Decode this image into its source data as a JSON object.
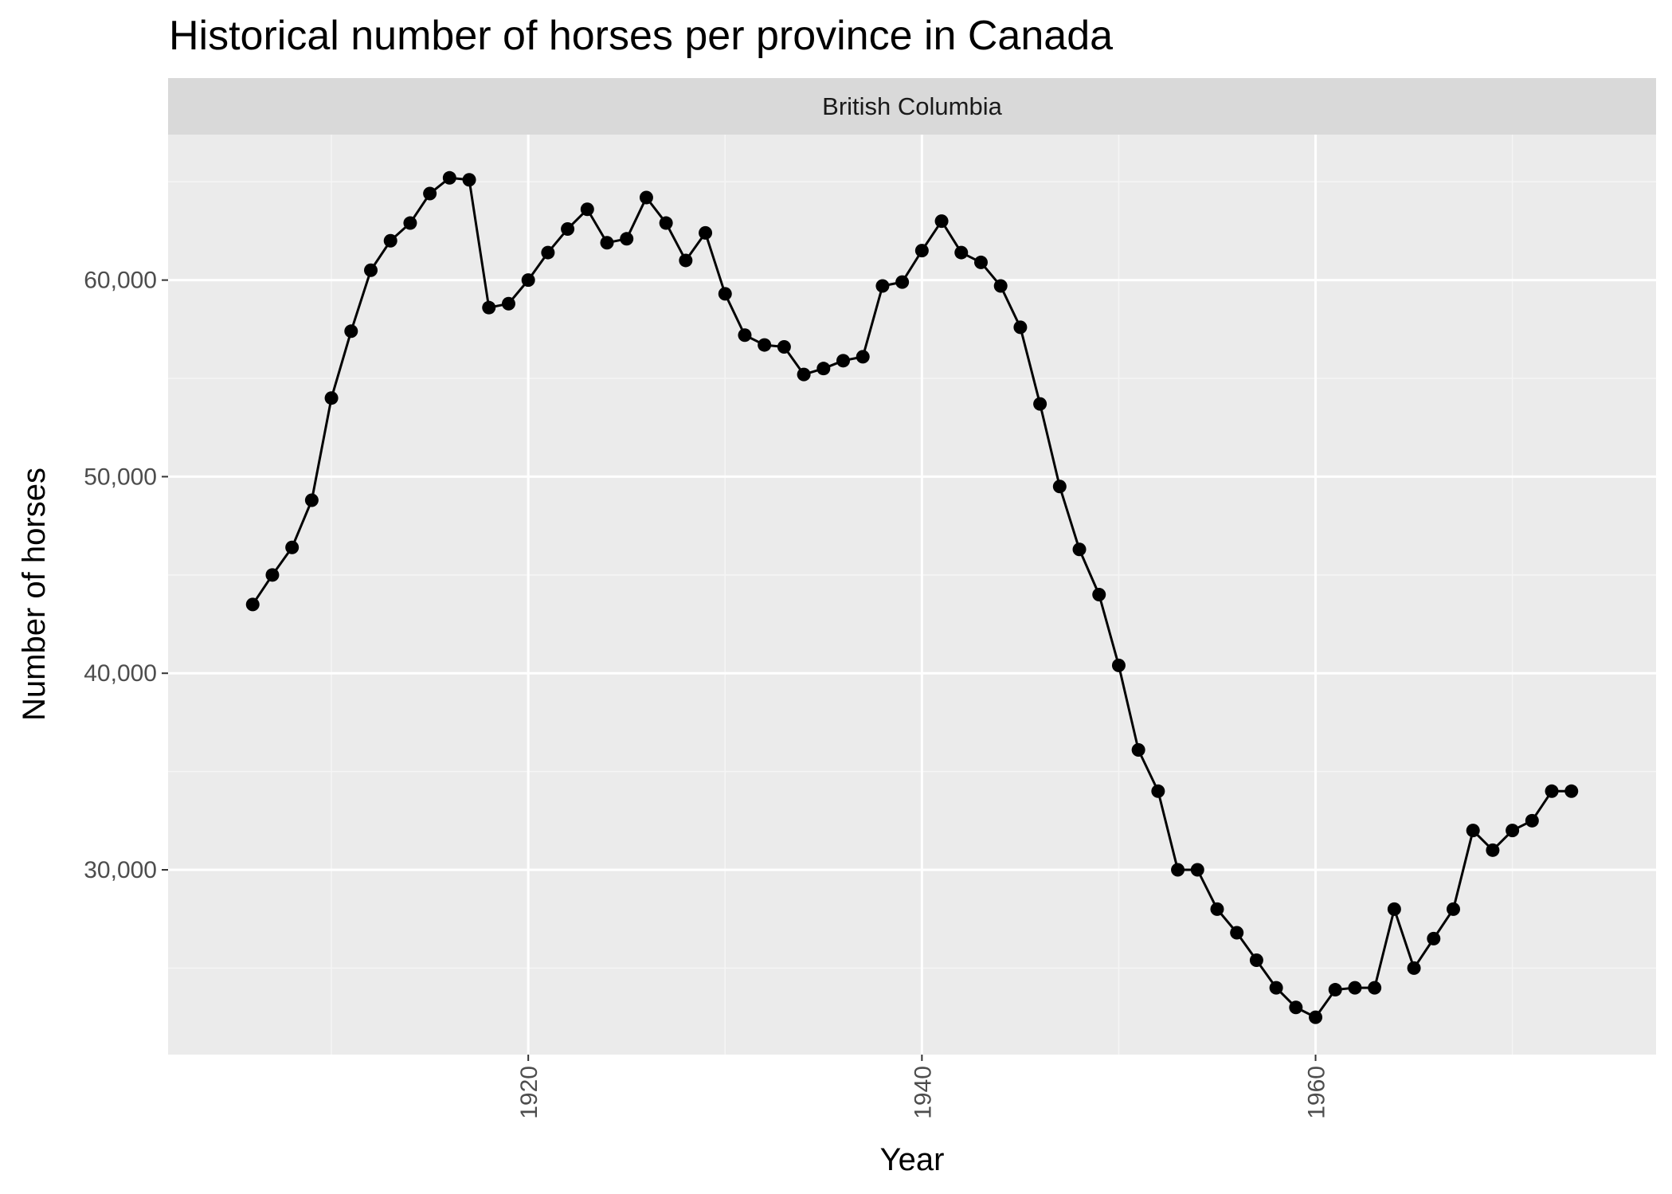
{
  "chart_data": {
    "type": "line",
    "title": "Historical number of horses per province in Canada",
    "facet_label": "British Columbia",
    "xlabel": "Year",
    "ylabel": "Number of horses",
    "xlim": [
      1901.7,
      1977.3
    ],
    "ylim": [
      20600,
      67400
    ],
    "x_ticks": [
      1920,
      1940,
      1960
    ],
    "x_tick_labels": [
      "1920",
      "1940",
      "1960"
    ],
    "x_minor_ticks": [
      1910,
      1930,
      1950,
      1970
    ],
    "y_ticks": [
      30000,
      40000,
      50000,
      60000
    ],
    "y_tick_labels": [
      "30,000",
      "40,000",
      "50,000",
      "60,000"
    ],
    "y_minor_ticks": [
      25000,
      35000,
      45000,
      55000,
      65000
    ],
    "grid": true,
    "series": [
      {
        "name": "British Columbia",
        "color": "#000000",
        "x": [
          1906,
          1907,
          1908,
          1909,
          1910,
          1911,
          1912,
          1913,
          1914,
          1915,
          1916,
          1917,
          1918,
          1919,
          1920,
          1921,
          1922,
          1923,
          1924,
          1925,
          1926,
          1927,
          1928,
          1929,
          1930,
          1931,
          1932,
          1933,
          1934,
          1935,
          1936,
          1937,
          1938,
          1939,
          1940,
          1941,
          1942,
          1943,
          1944,
          1945,
          1946,
          1947,
          1948,
          1949,
          1950,
          1951,
          1952,
          1953,
          1954,
          1955,
          1956,
          1957,
          1958,
          1959,
          1960,
          1961,
          1962,
          1963,
          1964,
          1965,
          1966,
          1967,
          1968,
          1969,
          1970,
          1971,
          1972,
          1973
        ],
        "values": [
          43500,
          45000,
          46400,
          48800,
          54000,
          57400,
          60500,
          62000,
          62900,
          64400,
          65200,
          65100,
          58600,
          58800,
          60000,
          61400,
          62600,
          63600,
          61900,
          62100,
          64200,
          62900,
          61000,
          62400,
          59300,
          57200,
          56700,
          56600,
          55200,
          55500,
          55900,
          56100,
          59700,
          59900,
          61500,
          63000,
          61400,
          60900,
          59700,
          57600,
          53700,
          49500,
          46300,
          44000,
          40400,
          36100,
          34000,
          30000,
          30000,
          28000,
          26800,
          25400,
          24000,
          23000,
          22500,
          23900,
          24000,
          24000,
          28000,
          25000,
          26500,
          28000,
          32000,
          31000,
          32000,
          32500,
          34000,
          34000
        ]
      }
    ]
  },
  "colors": {
    "panel_bg": "#ebebeb",
    "strip_bg": "#d9d9d9",
    "grid_major": "#ffffff",
    "grid_minor": "#f5f5f5",
    "line": "#000000"
  }
}
